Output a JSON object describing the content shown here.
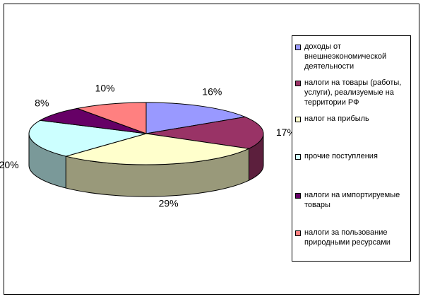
{
  "chart_data": {
    "type": "pie",
    "three_d": true,
    "legend_position": "right",
    "labels": [
      "доходы от внешнеэкономической деятельности",
      "налоги на товары (работы, услуги), реализуемые на территории РФ",
      "налог на прибыль",
      "прочие поступления",
      "налоги на импортируемые товары",
      "налоги за пользование природными ресурсами"
    ],
    "values": [
      16,
      17,
      29,
      20,
      8,
      10
    ],
    "value_labels": [
      "16%",
      "17%",
      "29%",
      "20%",
      "8%",
      "10%"
    ],
    "colors": [
      "#9999FF",
      "#993366",
      "#FFFFCC",
      "#CCFFFF",
      "#660066",
      "#FF8080"
    ]
  }
}
